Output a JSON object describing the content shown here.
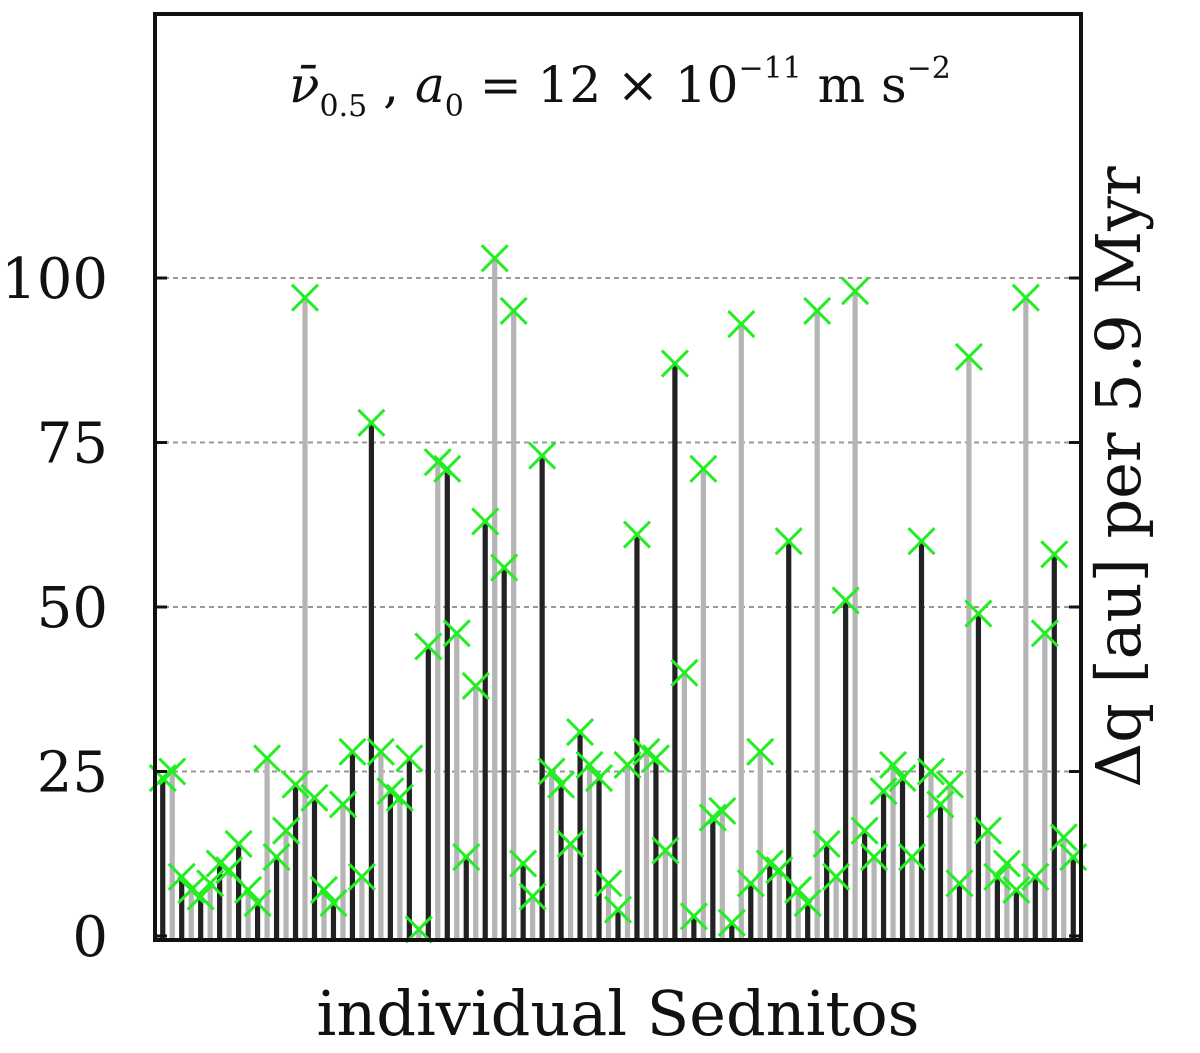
{
  "chart_data": {
    "type": "bar",
    "title": {
      "symbol": "ν̄",
      "symbol_subscript": "0.5",
      "sep": " , ",
      "a0_symbol": "a",
      "a0_subscript": "0",
      "a0_value": " = 12 × 10",
      "a0_exponent": "−11",
      "unit_main": " m s",
      "unit_exponent": "−2"
    },
    "xlabel": "individual Sednitos",
    "ylabel": "Δq [au] per 5.9 Myr",
    "ylim": [
      0,
      100
    ],
    "yticks": [
      0,
      25,
      50,
      75,
      100
    ],
    "grid": "horizontal dashed",
    "colors": {
      "bar_dark": "#222222",
      "bar_light": "#b5b5b5",
      "marker": "#22ee22",
      "grid": "#999999",
      "frame": "#111111"
    },
    "marker": "x",
    "values": [
      24,
      25,
      9,
      7,
      6,
      8,
      11,
      10,
      14,
      7,
      5,
      27,
      12,
      16,
      23,
      97,
      21,
      7,
      5,
      20,
      28,
      9,
      78,
      28,
      22,
      21,
      27,
      1,
      44,
      72,
      71,
      46,
      12,
      38,
      63,
      103,
      56,
      95,
      11,
      6,
      73,
      25,
      23,
      14,
      31,
      26,
      24,
      8,
      4,
      26,
      61,
      28,
      27,
      13,
      87,
      40,
      3,
      71,
      18,
      19,
      2,
      93,
      8,
      28,
      11,
      10,
      60,
      7,
      5,
      95,
      14,
      9,
      51,
      98,
      16,
      12,
      22,
      26,
      24,
      12,
      60,
      25,
      20,
      23,
      8,
      88,
      49,
      16,
      9,
      11,
      7,
      97,
      9,
      46,
      58,
      15,
      12
    ]
  }
}
